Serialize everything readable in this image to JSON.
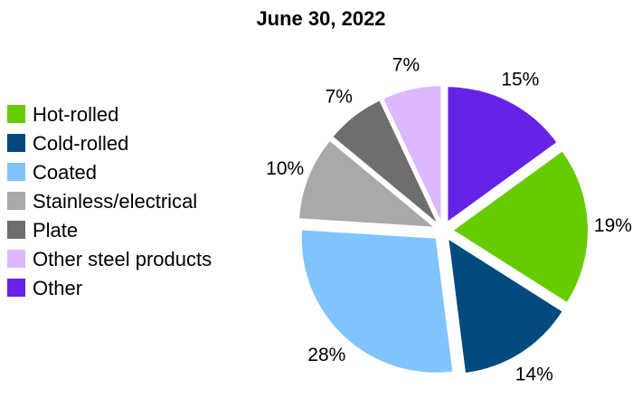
{
  "chart_data": {
    "type": "pie",
    "title": "June 30, 2022",
    "legend_position": "left",
    "slices": [
      {
        "label": "Hot-rolled",
        "value": 19,
        "value_label": "19%",
        "color": "#66cc00"
      },
      {
        "label": "Cold-rolled",
        "value": 14,
        "value_label": "14%",
        "color": "#004a80"
      },
      {
        "label": "Coated",
        "value": 28,
        "value_label": "28%",
        "color": "#80c4ff"
      },
      {
        "label": "Stainless/electrical",
        "value": 10,
        "value_label": "10%",
        "color": "#a9a9a9"
      },
      {
        "label": "Plate",
        "value": 7,
        "value_label": "7%",
        "color": "#6e6e6e"
      },
      {
        "label": "Other steel products",
        "value": 7,
        "value_label": "7%",
        "color": "#ddb8ff"
      },
      {
        "label": "Other",
        "value": 15,
        "value_label": "15%",
        "color": "#6622e6"
      }
    ]
  }
}
